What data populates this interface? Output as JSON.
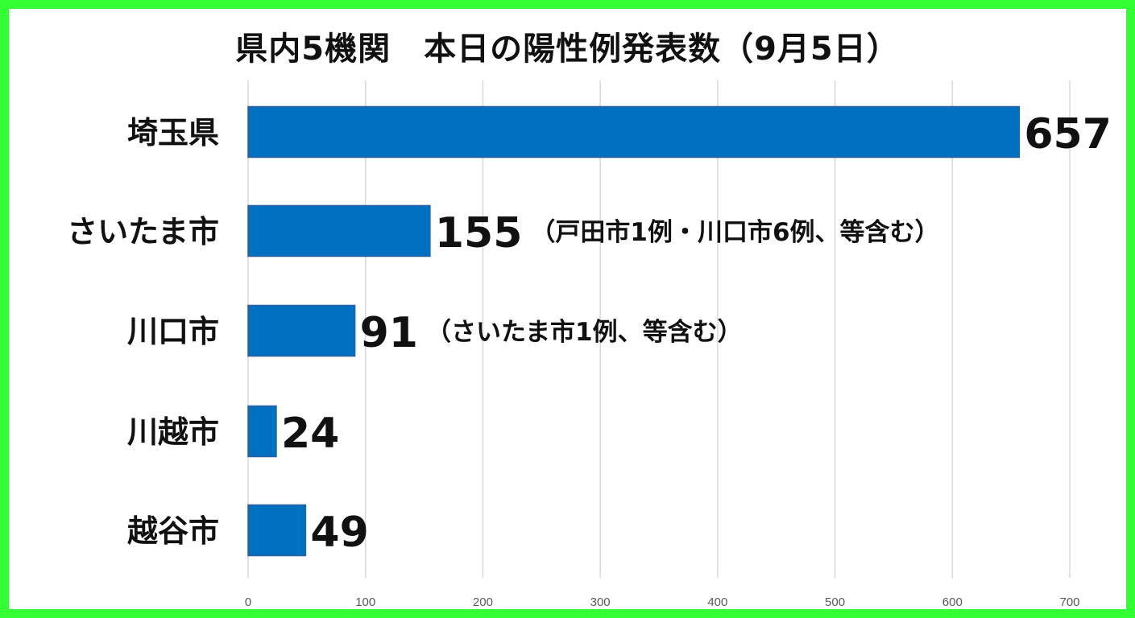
{
  "chart_data": {
    "type": "bar",
    "orientation": "horizontal",
    "title": "県内5機関　本日の陽性例発表数（9月5日）",
    "categories": [
      "埼玉県",
      "さいたま市",
      "川口市",
      "川越市",
      "越谷市"
    ],
    "values": [
      657,
      155,
      91,
      24,
      49
    ],
    "value_labels": [
      "657",
      "155",
      "91",
      "24",
      "49"
    ],
    "annotations": [
      "",
      "（戸田市1例・川口市6例、等含む）",
      "（さいたま市1例、等含む）",
      "",
      ""
    ],
    "xlim": [
      0,
      700
    ],
    "xticks": [
      0,
      100,
      200,
      300,
      400,
      500,
      600,
      700
    ],
    "grid": true,
    "colors": {
      "bar": "#0070c0",
      "bar_edge": "#2e5f9e",
      "grid": "#d9d9d9",
      "frame": "#33ff33"
    }
  }
}
